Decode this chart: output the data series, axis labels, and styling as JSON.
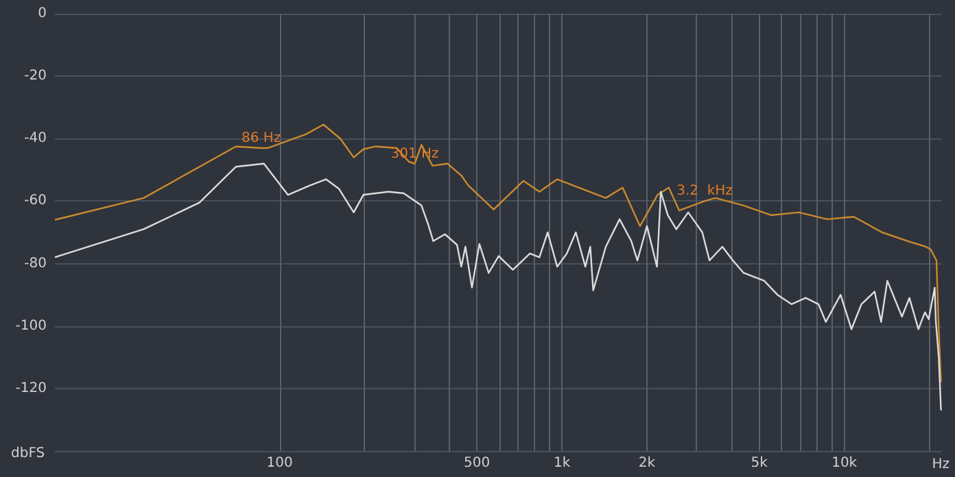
{
  "chart_data": {
    "type": "line",
    "xlabel": "Hz",
    "ylabel": "dbFS",
    "log": "x",
    "grid": true,
    "marker": "none",
    "line_style": "solid",
    "xlim": [
      16,
      22050
    ],
    "xticks": [
      100,
      {
        "value": 200,
        "label": null
      },
      {
        "value": 300,
        "label": null
      },
      {
        "value": 400,
        "label": null
      },
      500,
      {
        "value": 600,
        "label": null
      },
      {
        "value": 700,
        "label": null
      },
      {
        "value": 800,
        "label": null
      },
      {
        "value": 900,
        "label": null
      },
      {
        "value": 1000,
        "label": "1k"
      },
      {
        "value": 2000,
        "label": "2k"
      },
      {
        "value": 3000,
        "label": null
      },
      {
        "value": 4000,
        "label": null
      },
      {
        "value": 5000,
        "label": "5k"
      },
      {
        "value": 6000,
        "label": null
      },
      {
        "value": 7000,
        "label": null
      },
      {
        "value": 8000,
        "label": null
      },
      {
        "value": 9000,
        "label": null
      },
      {
        "value": 10000,
        "label": "10k"
      },
      {
        "value": 20000,
        "label": null
      }
    ],
    "ylim": [
      -140,
      0
    ],
    "yticks": [
      0,
      -20,
      -40,
      -60,
      -80,
      -100,
      -120,
      {
        "value": -140,
        "label": null
      }
    ],
    "annotations": [
      {
        "text": "86 Hz",
        "x": 86,
        "y": -43
      },
      {
        "text": "301 Hz",
        "x": 301,
        "y": -48
      },
      {
        "text": "3.2  kHz",
        "x": 3200,
        "y": -60
      }
    ],
    "series": [
      {
        "color": "#c98a2e",
        "x": [
          16,
          33,
          70,
          86,
          91,
          124,
          143,
          164,
          183,
          198,
          219,
          260,
          287,
          301,
          318,
          348,
          393,
          440,
          466,
          573,
          730,
          832,
          962,
          1430,
          1640,
          1890,
          2180,
          2390,
          2600,
          3200,
          3500,
          4400,
          5500,
          6900,
          8700,
          10800,
          13600,
          17000,
          19300,
          20200,
          21200,
          21600,
          22000
        ],
        "values": [
          -66,
          -59,
          -42.5,
          -43,
          -43,
          -38.6,
          -35.5,
          -40,
          -46,
          -43.4,
          -42.5,
          -43,
          -47.4,
          -48,
          -42,
          -48.7,
          -48,
          -51.8,
          -55,
          -62.7,
          -53.5,
          -57,
          -53,
          -59,
          -55.7,
          -68,
          -58,
          -55.7,
          -63,
          -60,
          -59,
          -61.4,
          -64.5,
          -63.6,
          -65.8,
          -65,
          -70,
          -73,
          -74.5,
          -75.4,
          -79,
          -101,
          -118
        ]
      },
      {
        "color": "#dcdcdc",
        "x": [
          16,
          33,
          52,
          70,
          88,
          107,
          128,
          146,
          162,
          183,
          198,
          219,
          243,
          275,
          318,
          336,
          350,
          385,
          425,
          440,
          455,
          480,
          510,
          550,
          597,
          670,
          770,
          832,
          890,
          962,
          1040,
          1120,
          1210,
          1260,
          1290,
          1430,
          1600,
          1760,
          1850,
          2000,
          2170,
          2240,
          2370,
          2540,
          2800,
          3140,
          3330,
          3700,
          4030,
          4400,
          5200,
          5800,
          6500,
          7300,
          8100,
          8600,
          9700,
          10600,
          11500,
          12800,
          13500,
          14200,
          16000,
          17000,
          18300,
          19300,
          19900,
          20900,
          21100,
          21600,
          22000
        ],
        "values": [
          -78,
          -69,
          -60.5,
          -49,
          -48,
          -58,
          -55,
          -53,
          -56,
          -63.6,
          -58,
          -57.5,
          -57,
          -57.5,
          -61.4,
          -67.5,
          -72.8,
          -70.6,
          -74,
          -81,
          -74.6,
          -87.7,
          -73.7,
          -83,
          -77.6,
          -82,
          -76.8,
          -78,
          -70,
          -81,
          -76.8,
          -70,
          -81,
          -74.6,
          -88.6,
          -74.6,
          -65.8,
          -72.8,
          -79,
          -68,
          -81,
          -57,
          -64.5,
          -69,
          -63.6,
          -70,
          -79,
          -74.6,
          -79,
          -83,
          -85.5,
          -90,
          -93,
          -91,
          -93,
          -98.7,
          -90,
          -101,
          -93,
          -89,
          -98.7,
          -85.5,
          -97,
          -91,
          -101,
          -95.6,
          -97.8,
          -87.7,
          -98.7,
          -110,
          -127
        ]
      }
    ]
  }
}
